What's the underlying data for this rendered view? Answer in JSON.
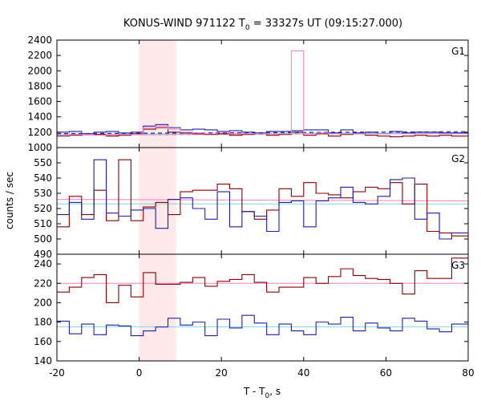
{
  "chart_data": {
    "type": "line",
    "title_main": "KONUS-WIND 971122 T",
    "title_sub": "0",
    "title_rest": " = 33327s UT (09:15:27.000)",
    "xlabel_main": "T - T",
    "xlabel_sub": "0",
    "xlabel_rest": ", s",
    "ylabel": "counts / sec",
    "xlim": [
      -20,
      80
    ],
    "xticks": [
      "-20",
      "0",
      "20",
      "40",
      "60",
      "80"
    ],
    "highlight_interval": [
      0,
      9
    ],
    "colors": {
      "series_a": "#8b0000",
      "series_b": "#1f1fa8",
      "series_c": "#e88ad8",
      "background_line_a": "#ff7fbf",
      "background_line_b": "#7fd8e8",
      "highlight": "#fde8ea"
    },
    "panels": [
      {
        "label": "G1",
        "ylim": [
          1000,
          2400
        ],
        "yticks": [
          "1000",
          "1200",
          "1400",
          "1600",
          "1800",
          "2000",
          "2200",
          "2400"
        ],
        "bin_edges": [
          -20,
          -17,
          -14,
          -11,
          -8,
          -5,
          -2,
          1,
          4,
          7,
          10,
          13,
          16,
          19,
          22,
          25,
          28,
          31,
          34,
          37,
          40,
          43,
          46,
          49,
          52,
          55,
          58,
          61,
          64,
          67,
          70,
          73,
          76,
          79
        ],
        "series": [
          {
            "values": [
              1150,
              1160,
              1180,
              1170,
              1150,
              1160,
              1180,
              1240,
              1260,
              1200,
              1190,
              1180,
              1170,
              1180,
              1160,
              1170,
              1180,
              1160,
              1170,
              1200,
              1160,
              1180,
              1150,
              1170,
              1180,
              1160,
              1150,
              1140,
              1150,
              1160,
              1150,
              1160,
              1150
            ],
            "color": "series_a"
          },
          {
            "values": [
              1200,
              1210,
              1180,
              1200,
              1210,
              1190,
              1200,
              1280,
              1300,
              1260,
              1230,
              1240,
              1230,
              1210,
              1220,
              1200,
              1190,
              1210,
              1210,
              1220,
              1230,
              1230,
              1190,
              1230,
              1190,
              1200,
              1180,
              1210,
              1190,
              1200,
              1200,
              1190,
              1190
            ],
            "color": "series_b"
          },
          {
            "values": [
              1160,
              1170,
              1170,
              1160,
              1170,
              1170,
              1170,
              1260,
              1280,
              1240,
              1200,
              1190,
              1180,
              1200,
              1180,
              1180,
              1180,
              1180,
              1180,
              2260,
              1180,
              1190,
              1180,
              1180,
              1180,
              1180,
              1180,
              1180,
              1180,
              1180,
              1180,
              1180,
              1180
            ],
            "color": "series_c"
          }
        ],
        "background_lines": [
          {
            "start": 1165,
            "end": 1190,
            "color": "series_a",
            "dash": true
          },
          {
            "start": 1180,
            "end": 1205,
            "color": "series_b",
            "dash": true
          },
          {
            "start": 1162,
            "end": 1190,
            "color": "background_line_a",
            "dash": false
          },
          {
            "start": 1170,
            "end": 1196,
            "color": "background_line_b",
            "dash": false
          }
        ]
      },
      {
        "label": "G2",
        "ylim": [
          490,
          560
        ],
        "yticks": [
          "490",
          "500",
          "510",
          "520",
          "530",
          "540",
          "550"
        ],
        "bin_edges": [
          -20,
          -17,
          -14,
          -11,
          -8,
          -5,
          -2,
          1,
          4,
          7,
          10,
          13,
          16,
          19,
          22,
          25,
          28,
          31,
          34,
          37,
          40,
          43,
          46,
          49,
          52,
          55,
          58,
          61,
          64,
          67,
          70,
          73,
          76,
          79
        ],
        "series": [
          {
            "values": [
              508,
              528,
              516,
              532,
              512,
              552,
              512,
              521,
              524,
              516,
              531,
              532,
              532,
              536,
              533,
              518,
              513,
              519,
              533,
              528,
              537,
              530,
              529,
              527,
              531,
              534,
              533,
              537,
              523,
              536,
              505,
              504,
              502
            ],
            "color": "series_a"
          },
          {
            "values": [
              516,
              524,
              513,
              552,
              517,
              515,
              519,
              520,
              507,
              526,
              527,
              520,
              513,
              531,
              508,
              518,
              515,
              505,
              524,
              525,
              508,
              525,
              527,
              534,
              524,
              523,
              528,
              539,
              540,
              513,
              517,
              500,
              504
            ],
            "color": "series_b"
          }
        ],
        "background_lines": [
          {
            "start": 526,
            "end": 525,
            "color": "background_line_a",
            "dash": false
          },
          {
            "start": 523,
            "end": 523,
            "color": "background_line_b",
            "dash": false
          }
        ]
      },
      {
        "label": "G3",
        "ylim": [
          140,
          250
        ],
        "yticks": [
          "140",
          "160",
          "180",
          "200",
          "220",
          "240"
        ],
        "bin_edges": [
          -20,
          -17,
          -14,
          -11,
          -8,
          -5,
          -2,
          1,
          4,
          7,
          10,
          13,
          16,
          19,
          22,
          25,
          28,
          31,
          34,
          37,
          40,
          43,
          46,
          49,
          52,
          55,
          58,
          61,
          64,
          67,
          70,
          73,
          76,
          79
        ],
        "series": [
          {
            "values": [
              211,
              216,
              226,
              229,
              200,
              218,
              206,
              231,
              219,
              219,
              221,
              226,
              217,
              222,
              224,
              229,
              221,
              211,
              216,
              216,
              226,
              220,
              227,
              235,
              228,
              225,
              224,
              220,
              209,
              233,
              225,
              225,
              246
            ],
            "color": "series_a"
          },
          {
            "values": [
              181,
              168,
              178,
              167,
              177,
              176,
              166,
              171,
              175,
              184,
              177,
              180,
              166,
              183,
              174,
              187,
              179,
              167,
              178,
              171,
              167,
              180,
              178,
              185,
              171,
              179,
              174,
              171,
              184,
              181,
              173,
              170,
              178
            ],
            "color": "series_b"
          }
        ],
        "background_lines": [
          {
            "start": 220,
            "end": 220,
            "color": "background_line_a",
            "dash": false
          },
          {
            "start": 175,
            "end": 175,
            "color": "background_line_b",
            "dash": false
          }
        ]
      }
    ]
  }
}
